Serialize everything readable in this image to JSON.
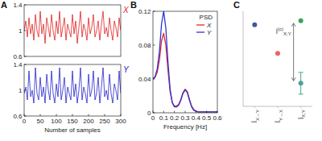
{
  "chart_data": [
    {
      "type": "line",
      "panel": "A",
      "x": [
        0,
        5,
        10,
        15,
        20,
        25,
        30,
        35,
        40,
        45,
        50,
        55,
        60,
        65,
        70,
        75,
        80,
        85,
        90,
        95,
        100,
        105,
        110,
        115,
        120,
        125,
        130,
        135,
        140,
        145,
        150,
        155,
        160,
        165,
        170,
        175,
        180,
        185,
        190,
        195,
        200,
        205,
        210,
        215,
        220,
        225,
        230,
        235,
        240,
        245,
        250,
        255,
        260,
        265,
        270,
        275,
        280,
        285,
        290,
        295,
        300
      ],
      "series": [
        {
          "name": "X",
          "color": "#e0201f",
          "values": [
            1.0,
            1.15,
            0.9,
            1.2,
            0.95,
            1.1,
            0.85,
            1.25,
            1.0,
            0.9,
            1.3,
            0.95,
            1.1,
            0.8,
            1.2,
            1.05,
            0.9,
            1.25,
            1.0,
            0.85,
            1.15,
            0.95,
            1.3,
            0.9,
            1.05,
            1.2,
            0.85,
            1.1,
            1.0,
            0.9,
            1.25,
            0.95,
            1.15,
            0.8,
            1.05,
            1.3,
            0.9,
            1.1,
            1.0,
            0.85,
            1.2,
            0.95,
            1.05,
            1.25,
            0.9,
            1.0,
            1.15,
            0.85,
            1.1,
            1.3,
            0.95,
            1.05,
            0.9,
            1.2,
            1.0,
            0.85,
            1.15,
            1.05,
            0.9,
            1.2,
            1.0
          ]
        }
      ],
      "xlim": [
        0,
        300
      ],
      "ylim": [
        0.6,
        1.4
      ],
      "yticks": [
        0.6,
        1,
        1.4
      ],
      "tick_labels": "y"
    },
    {
      "type": "line",
      "x": [
        0,
        5,
        10,
        15,
        20,
        25,
        30,
        35,
        40,
        45,
        50,
        55,
        60,
        65,
        70,
        75,
        80,
        85,
        90,
        95,
        100,
        105,
        110,
        115,
        120,
        125,
        130,
        135,
        140,
        145,
        150,
        155,
        160,
        165,
        170,
        175,
        180,
        185,
        190,
        195,
        200,
        205,
        210,
        215,
        220,
        225,
        230,
        235,
        240,
        245,
        250,
        255,
        260,
        265,
        270,
        275,
        280,
        285,
        290,
        295,
        300
      ],
      "series": [
        {
          "name": "Y",
          "color": "#2424c8",
          "values": [
            0.95,
            1.05,
            0.85,
            1.3,
            0.9,
            1.0,
            0.8,
            1.35,
            0.95,
            0.85,
            1.2,
            0.9,
            1.05,
            0.8,
            1.25,
            1.0,
            0.85,
            1.3,
            0.95,
            0.8,
            1.1,
            0.9,
            1.35,
            0.85,
            1.0,
            1.2,
            0.8,
            1.05,
            0.95,
            0.85,
            1.3,
            0.9,
            1.1,
            0.8,
            1.0,
            1.35,
            0.85,
            1.05,
            0.95,
            0.8,
            1.25,
            0.9,
            1.0,
            1.3,
            0.85,
            0.95,
            1.2,
            0.8,
            1.05,
            1.35,
            0.9,
            1.0,
            0.85,
            1.25,
            0.95,
            0.8,
            1.1,
            1.0,
            0.85,
            1.3,
            0.95
          ]
        }
      ],
      "xlim": [
        0,
        300
      ],
      "xticks": [
        0,
        50,
        100,
        150,
        200,
        250,
        300
      ],
      "ylim": [
        0.6,
        1.4
      ],
      "yticks": [
        0.6,
        1,
        1.4
      ],
      "x_label": "Number of samples"
    },
    {
      "type": "line",
      "panel": "B",
      "title": "PSD",
      "x": [
        0,
        0.02,
        0.04,
        0.06,
        0.08,
        0.1,
        0.12,
        0.14,
        0.16,
        0.18,
        0.2,
        0.22,
        0.24,
        0.26,
        0.28,
        0.3,
        0.32,
        0.34,
        0.36,
        0.38,
        0.4,
        0.42,
        0.44,
        0.46,
        0.48,
        0.5,
        0.52,
        0.54,
        0.56,
        0.58,
        0.6
      ],
      "series": [
        {
          "name": "X",
          "color": "#e8262b",
          "values": [
            0.04,
            0.042,
            0.048,
            0.062,
            0.085,
            0.094,
            0.08,
            0.05,
            0.025,
            0.012,
            0.008,
            0.008,
            0.01,
            0.016,
            0.024,
            0.028,
            0.025,
            0.016,
            0.008,
            0.004,
            0.002,
            0.001,
            0.001,
            0.001,
            0.001,
            0.001,
            0.001,
            0.001,
            0.001,
            0.001,
            0.001
          ]
        },
        {
          "name": "Y",
          "color": "#2a35d4",
          "values": [
            0.04,
            0.043,
            0.052,
            0.072,
            0.105,
            0.12,
            0.1,
            0.06,
            0.028,
            0.012,
            0.007,
            0.007,
            0.009,
            0.015,
            0.023,
            0.027,
            0.024,
            0.015,
            0.007,
            0.003,
            0.002,
            0.001,
            0.001,
            0.001,
            0.001,
            0.001,
            0.001,
            0.001,
            0.001,
            0.001,
            0.001
          ]
        }
      ],
      "xlim": [
        0,
        0.6
      ],
      "xticks": [
        0,
        0.1,
        0.2,
        0.3,
        0.4,
        0.5,
        0.6
      ],
      "ylim": [
        0,
        0.12
      ],
      "yticks": [
        0,
        0.04,
        0.08,
        0.12
      ],
      "x_label": "Frequency [Hz]",
      "legend": "upper right"
    },
    {
      "type": "scatter",
      "panel": "C",
      "categories": [
        "ÎX→Y",
        "ÎY→X",
        "ÎX;Y"
      ],
      "series": [
        {
          "color": "#3d5a99",
          "values": [
            0.25,
            null,
            null
          ]
        },
        {
          "color": "#f0606a",
          "values": [
            null,
            0.04,
            null
          ]
        },
        {
          "color": "#3aa655",
          "values": [
            null,
            null,
            0.28
          ]
        },
        {
          "color": "#4aa39a",
          "values": [
            null,
            null,
            -0.18
          ],
          "errors": [
            null,
            null,
            0.08
          ]
        }
      ],
      "ylim": [
        -0.35,
        0.35
      ],
      "tick_labels": "x",
      "annotations": [
        {
          "text": "Î(c)X;Y"
        }
      ]
    }
  ]
}
